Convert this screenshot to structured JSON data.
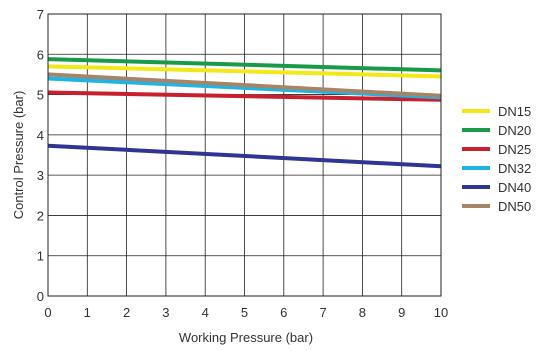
{
  "chart_data": {
    "type": "line",
    "title": "",
    "xlabel": "Working Pressure (bar)",
    "ylabel": "Control Pressure (bar)",
    "xlim": [
      0,
      10
    ],
    "ylim": [
      0,
      7
    ],
    "x_ticks": [
      "0",
      "1",
      "2",
      "3",
      "4",
      "5",
      "6",
      "7",
      "8",
      "9",
      "10"
    ],
    "y_ticks": [
      "0",
      "1",
      "2",
      "3",
      "4",
      "5",
      "6",
      "7"
    ],
    "grid": true,
    "legend_position": "right",
    "x": [
      0,
      10
    ],
    "series": [
      {
        "name": "DN15",
        "color": "#f2e81a",
        "values": [
          5.7,
          5.45
        ]
      },
      {
        "name": "DN20",
        "color": "#1a9a48",
        "values": [
          5.88,
          5.6
        ]
      },
      {
        "name": "DN25",
        "color": "#c8202e",
        "values": [
          5.05,
          4.87
        ]
      },
      {
        "name": "DN32",
        "color": "#1eb4e6",
        "values": [
          5.4,
          4.93
        ]
      },
      {
        "name": "DN40",
        "color": "#2e3592",
        "values": [
          3.73,
          3.22
        ]
      },
      {
        "name": "DN50",
        "color": "#a58468",
        "values": [
          5.5,
          4.97
        ]
      }
    ]
  }
}
